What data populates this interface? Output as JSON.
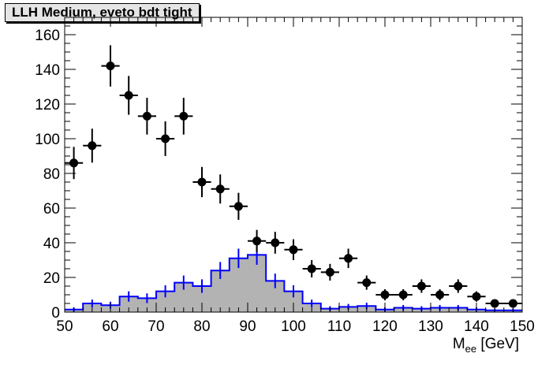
{
  "title": "LLH Medium, eveto bdt tight",
  "chart_data": {
    "type": "scatter",
    "xlabel": "M",
    "xlabel_sub": "ee",
    "xlabel_unit": " [GeV]",
    "ylabel": "",
    "xlim": [
      50,
      150
    ],
    "ylim": [
      0,
      170
    ],
    "grid": false,
    "x_ticks": [
      50,
      60,
      70,
      80,
      90,
      100,
      110,
      120,
      130,
      140,
      150
    ],
    "y_ticks": [
      0,
      20,
      40,
      60,
      80,
      100,
      120,
      140,
      160
    ],
    "series": [
      {
        "kind": "points",
        "color": "#000000",
        "x": [
          52,
          56,
          60,
          64,
          68,
          72,
          76,
          80,
          84,
          88,
          92,
          96,
          100,
          104,
          108,
          112,
          116,
          120,
          124,
          128,
          132,
          136,
          140,
          144,
          148
        ],
        "y": [
          86,
          96,
          142,
          125,
          113,
          100,
          113,
          75,
          71,
          61,
          41,
          40,
          36,
          25,
          23,
          31,
          17,
          10,
          10,
          15,
          10,
          15,
          9,
          5,
          5
        ],
        "yerr": [
          9.3,
          9.8,
          11.9,
          11.2,
          10.6,
          10.0,
          10.6,
          8.7,
          8.4,
          7.8,
          6.4,
          6.3,
          6.0,
          5.0,
          4.8,
          5.6,
          4.1,
          3.2,
          3.2,
          3.9,
          3.2,
          3.9,
          3.0,
          2.2,
          2.2
        ],
        "xerr": 2
      },
      {
        "kind": "histogram",
        "fill": "#b3b3b3",
        "line": "#0000ff",
        "bin_edges": [
          50,
          54,
          58,
          62,
          66,
          70,
          74,
          78,
          82,
          86,
          90,
          94,
          98,
          102,
          106,
          110,
          114,
          118,
          122,
          126,
          130,
          134,
          138,
          142,
          146,
          150
        ],
        "values": [
          1.5,
          5,
          4,
          9,
          8,
          12,
          17,
          15,
          24,
          31,
          33,
          18,
          12,
          5,
          2,
          3,
          3.5,
          1.5,
          2.5,
          2,
          2.5,
          2.5,
          1.5,
          1,
          1
        ],
        "errors": [
          1.2,
          2.2,
          2.0,
          3.0,
          2.8,
          3.5,
          4.1,
          3.9,
          4.9,
          5.6,
          5.7,
          4.2,
          3.5,
          2.2,
          1.4,
          1.7,
          1.9,
          1.2,
          1.6,
          1.4,
          1.6,
          1.6,
          1.2,
          1.0,
          1.0
        ]
      }
    ]
  }
}
